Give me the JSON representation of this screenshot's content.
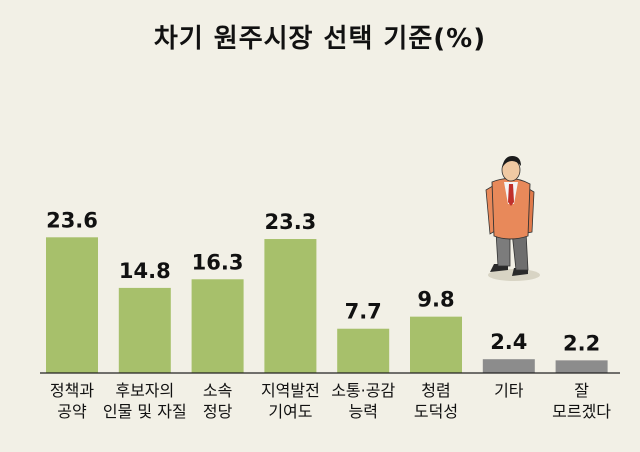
{
  "chart_data": {
    "type": "bar",
    "title": "차기 원주시장 선택 기준(%)",
    "categories": [
      [
        "정책과",
        "공약"
      ],
      [
        "후보자의",
        "인물 및 자질"
      ],
      [
        "소속",
        "정당"
      ],
      [
        "지역발전",
        "기여도"
      ],
      [
        "소통·공감",
        "능력"
      ],
      [
        "청렴",
        "도덕성"
      ],
      [
        "기타"
      ],
      [
        "잘",
        "모르겠다"
      ]
    ],
    "values": [
      23.6,
      14.8,
      16.3,
      23.3,
      7.7,
      9.8,
      2.4,
      2.2
    ],
    "value_labels": [
      "23.6",
      "14.8",
      "16.3",
      "23.3",
      "7.7",
      "9.8",
      "2.4",
      "2.2"
    ],
    "bar_colors": [
      "#a7c06b",
      "#a7c06b",
      "#a7c06b",
      "#a7c06b",
      "#a7c06b",
      "#a7c06b",
      "#8c8c8c",
      "#8c8c8c"
    ],
    "ylim": [
      0,
      25
    ],
    "grid": false,
    "legend": "none"
  }
}
